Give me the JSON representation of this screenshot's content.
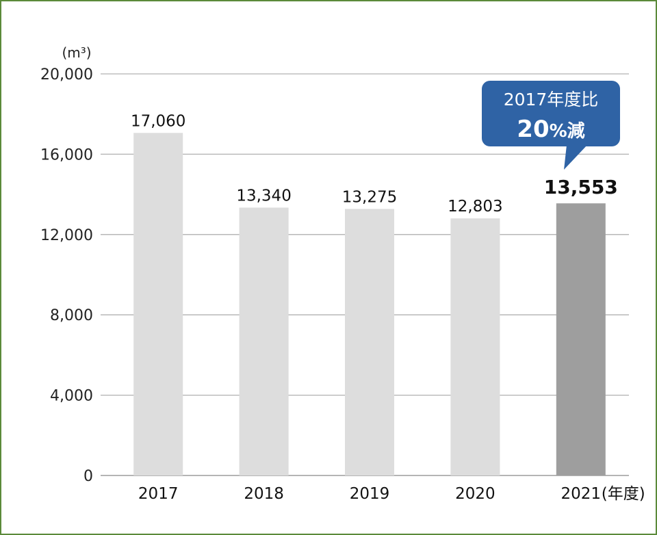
{
  "chart_data": {
    "type": "bar",
    "title": "",
    "unit_label": "(m³)",
    "xlabel": "(年度)",
    "ylabel": "",
    "categories": [
      "2017",
      "2018",
      "2019",
      "2020",
      "2021"
    ],
    "values": [
      17060,
      13340,
      13275,
      12803,
      13553
    ],
    "value_labels": [
      "17,060",
      "13,340",
      "13,275",
      "12,803",
      "13,553"
    ],
    "highlight_index": 4,
    "ylim": [
      0,
      20000
    ],
    "yticks": [
      0,
      4000,
      8000,
      12000,
      16000,
      20000
    ],
    "ytick_labels": [
      "0",
      "4,000",
      "8,000",
      "12,000",
      "16,000",
      "20,000"
    ],
    "grid": true,
    "annotation": {
      "line1": "2017年度比",
      "line2_number": "20",
      "line2_suffix": "%減"
    },
    "colors": {
      "bar": "#dddddd",
      "highlight_bar": "#9e9e9e",
      "grid": "#b0b0b0",
      "callout": "#2f63a5",
      "border": "#5b8a3a"
    }
  }
}
